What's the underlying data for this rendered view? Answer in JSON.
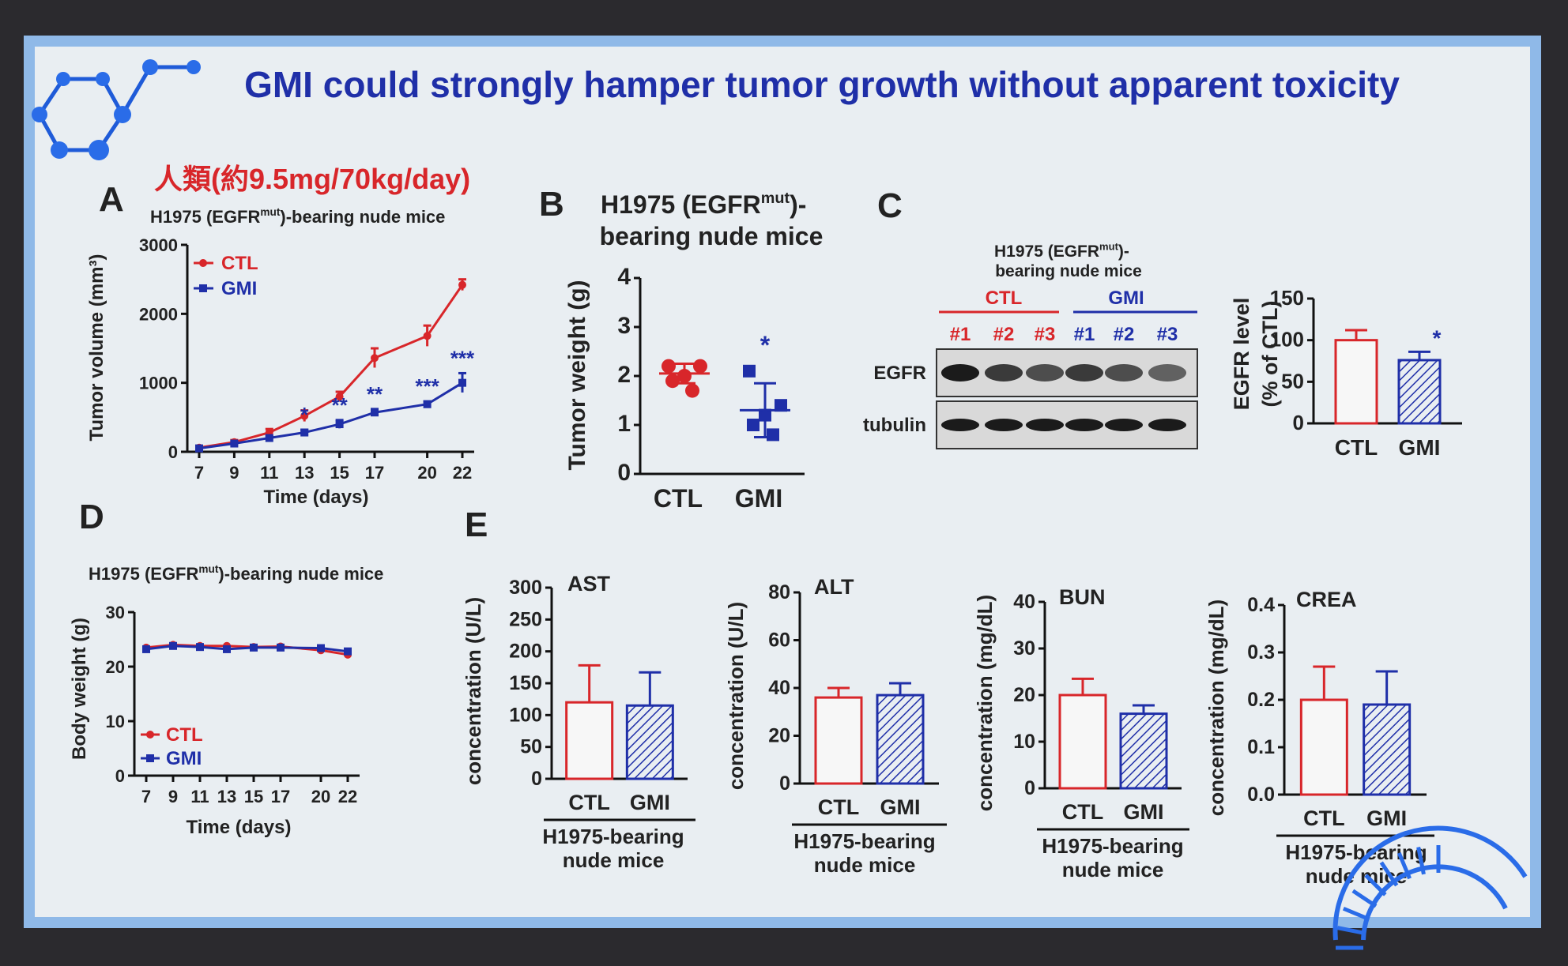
{
  "slide": {
    "title": "GMI could strongly hamper tumor growth without apparent toxicity",
    "subtitle": "人類(約9.5mg/70kg/day)",
    "panel_labels": [
      "A",
      "B",
      "C",
      "D",
      "E"
    ],
    "colors": {
      "ctl": "#d8262a",
      "gmi": "#1f2fa8",
      "title": "#1f2fa8"
    }
  },
  "chart_data": [
    {
      "id": "A",
      "type": "line",
      "title": "H1975 (EGFR^mut)-bearing nude mice",
      "xlabel": "Time (days)",
      "ylabel": "Tumor volume (mm³)",
      "x": [
        7,
        9,
        11,
        13,
        15,
        17,
        20,
        22
      ],
      "xticks": [
        "7",
        "9",
        "11",
        "13",
        "15",
        "17",
        "20",
        "22"
      ],
      "yticks": [
        "0",
        "1000",
        "2000",
        "3000"
      ],
      "ylim": [
        0,
        3000
      ],
      "series": [
        {
          "name": "CTL",
          "values": [
            60,
            140,
            280,
            520,
            800,
            1360,
            1680,
            2420
          ],
          "errors": [
            20,
            30,
            50,
            80,
            70,
            140,
            150,
            80
          ]
        },
        {
          "name": "GMI",
          "values": [
            50,
            120,
            200,
            280,
            400,
            570,
            690,
            1000
          ],
          "errors": [
            15,
            20,
            30,
            40,
            60,
            50,
            40,
            140
          ]
        }
      ],
      "annotations": [
        {
          "x": 13,
          "text": "*"
        },
        {
          "x": 15,
          "text": "**"
        },
        {
          "x": 17,
          "text": "**"
        },
        {
          "x": 20,
          "text": "***"
        },
        {
          "x": 22,
          "text": "***"
        }
      ],
      "legend": "top-left"
    },
    {
      "id": "B",
      "type": "scatter",
      "title_line1": "H1975 (EGFR^mut)-",
      "title_line2": "bearing nude mice",
      "ylabel": "Tumor weight (g)",
      "categories": [
        "CTL",
        "GMI"
      ],
      "yticks": [
        "0",
        "1",
        "2",
        "3",
        "4"
      ],
      "ylim": [
        0,
        4
      ],
      "series": [
        {
          "name": "CTL",
          "values": [
            2.2,
            2.2,
            2.0,
            1.9,
            1.7
          ],
          "mean": 2.05,
          "sd": 0.2
        },
        {
          "name": "GMI",
          "values": [
            2.1,
            1.4,
            1.2,
            1.0,
            0.8
          ],
          "mean": 1.3,
          "sd": 0.55
        }
      ],
      "annotations": [
        {
          "category": "GMI",
          "text": "*"
        }
      ]
    },
    {
      "id": "C-blot",
      "type": "table",
      "title_line1": "H1975 (EGFR^mut)-",
      "title_line2": "bearing nude mice",
      "groups": [
        "CTL",
        "GMI"
      ],
      "lanes": [
        "#1",
        "#2",
        "#3",
        "#1",
        "#2",
        "#3"
      ],
      "rows": [
        "EGFR",
        "tubulin"
      ]
    },
    {
      "id": "C-bar",
      "type": "bar",
      "ylabel_line1": "EGFR level",
      "ylabel_line2": "(% of CTL)",
      "categories": [
        "CTL",
        "GMI"
      ],
      "values": [
        100,
        76
      ],
      "errors": [
        12,
        10
      ],
      "yticks": [
        "0",
        "50",
        "100",
        "150"
      ],
      "ylim": [
        0,
        150
      ],
      "annotations": [
        {
          "category": "GMI",
          "text": "*"
        }
      ]
    },
    {
      "id": "D",
      "type": "line",
      "title": "H1975 (EGFR^mut)-bearing nude mice",
      "xlabel": "Time (days)",
      "ylabel": "Body weight (g)",
      "x": [
        7,
        9,
        11,
        13,
        15,
        17,
        20,
        22
      ],
      "xticks": [
        "7",
        "9",
        "11",
        "13",
        "15",
        "17",
        "20",
        "22"
      ],
      "yticks": [
        "0",
        "10",
        "20",
        "30"
      ],
      "ylim": [
        0,
        30
      ],
      "series": [
        {
          "name": "CTL",
          "values": [
            23.5,
            24,
            23.8,
            23.8,
            23.6,
            23.7,
            23,
            22.2
          ]
        },
        {
          "name": "GMI",
          "values": [
            23.2,
            23.8,
            23.6,
            23.2,
            23.5,
            23.5,
            23.4,
            22.8
          ]
        }
      ],
      "legend": "bottom-left"
    },
    {
      "id": "E-AST",
      "type": "bar",
      "title": "AST",
      "ylabel": "concentration (U/L)",
      "categories": [
        "CTL",
        "GMI"
      ],
      "values": [
        120,
        115
      ],
      "errors": [
        58,
        52
      ],
      "yticks": [
        "0",
        "50",
        "100",
        "150",
        "200",
        "250",
        "300"
      ],
      "ylim": [
        0,
        300
      ],
      "group_label_line1": "H1975-bearing",
      "group_label_line2": "nude mice"
    },
    {
      "id": "E-ALT",
      "type": "bar",
      "title": "ALT",
      "ylabel": "concentration (U/L)",
      "categories": [
        "CTL",
        "GMI"
      ],
      "values": [
        36,
        37
      ],
      "errors": [
        4,
        5
      ],
      "yticks": [
        "0",
        "20",
        "40",
        "60",
        "80"
      ],
      "ylim": [
        0,
        80
      ],
      "group_label_line1": "H1975-bearing",
      "group_label_line2": "nude mice"
    },
    {
      "id": "E-BUN",
      "type": "bar",
      "title": "BUN",
      "ylabel": "concentration (mg/dL)",
      "categories": [
        "CTL",
        "GMI"
      ],
      "values": [
        20,
        16
      ],
      "errors": [
        3.5,
        1.8
      ],
      "yticks": [
        "0",
        "10",
        "20",
        "30",
        "40"
      ],
      "ylim": [
        0,
        40
      ],
      "group_label_line1": "H1975-bearing",
      "group_label_line2": "nude mice"
    },
    {
      "id": "E-CREA",
      "type": "bar",
      "title": "CREA",
      "ylabel": "concentration (mg/dL)",
      "categories": [
        "CTL",
        "GMI"
      ],
      "values": [
        0.2,
        0.19
      ],
      "errors": [
        0.07,
        0.07
      ],
      "yticks": [
        "0.0",
        "0.1",
        "0.2",
        "0.3",
        "0.4"
      ],
      "ylim": [
        0,
        0.4
      ],
      "group_label_line1": "H1975-bearing",
      "group_label_line2": "nude mice"
    }
  ]
}
